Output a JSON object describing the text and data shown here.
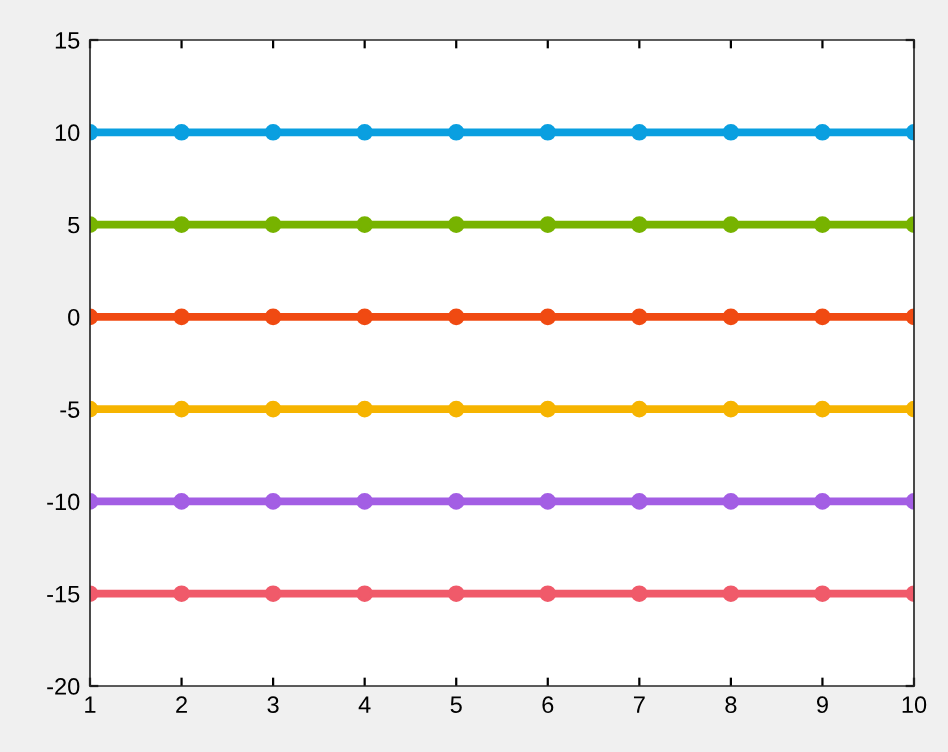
{
  "chart_data": {
    "type": "line",
    "x": [
      1,
      2,
      3,
      4,
      5,
      6,
      7,
      8,
      9,
      10
    ],
    "series": [
      {
        "color": "#0a9fe0",
        "values": [
          10,
          10,
          10,
          10,
          10,
          10,
          10,
          10,
          10,
          10
        ]
      },
      {
        "color": "#77b300",
        "values": [
          5,
          5,
          5,
          5,
          5,
          5,
          5,
          5,
          5,
          5
        ]
      },
      {
        "color": "#f04a12",
        "values": [
          0,
          0,
          0,
          0,
          0,
          0,
          0,
          0,
          0,
          0
        ]
      },
      {
        "color": "#f6b400",
        "values": [
          -5,
          -5,
          -5,
          -5,
          -5,
          -5,
          -5,
          -5,
          -5,
          -5
        ]
      },
      {
        "color": "#a35ee4",
        "values": [
          -10,
          -10,
          -10,
          -10,
          -10,
          -10,
          -10,
          -10,
          -10,
          -10
        ]
      },
      {
        "color": "#f05a6a",
        "values": [
          -15,
          -15,
          -15,
          -15,
          -15,
          -15,
          -15,
          -15,
          -15,
          -15
        ]
      }
    ],
    "xlim": [
      1,
      10
    ],
    "xticks": [
      1,
      2,
      3,
      4,
      5,
      6,
      7,
      8,
      9,
      10
    ],
    "ylim": [
      -20,
      15
    ],
    "yticks": [
      -20,
      -15,
      -10,
      -5,
      0,
      5,
      10,
      15
    ],
    "grid": false,
    "marker": "circle",
    "line_style": "solid"
  }
}
